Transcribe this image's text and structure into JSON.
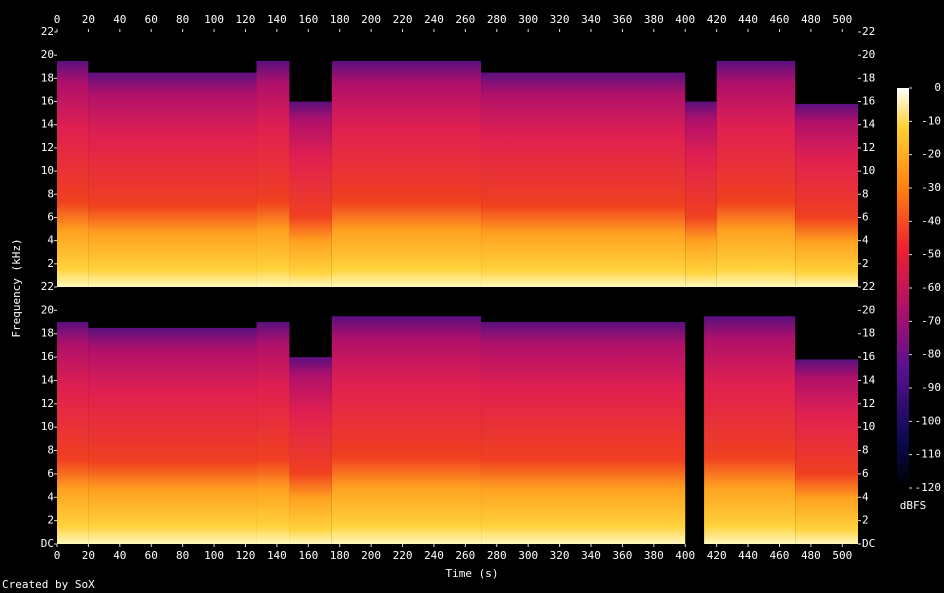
{
  "chart_data": {
    "type": "spectrogram",
    "x_label": "Time (s)",
    "y_label": "Frequency (kHz)",
    "colorbar_label": "dBFS",
    "footer": "Created by SoX",
    "xlim": [
      0,
      510
    ],
    "xticks": [
      0,
      20,
      40,
      60,
      80,
      100,
      120,
      140,
      160,
      180,
      200,
      220,
      240,
      260,
      280,
      300,
      320,
      340,
      360,
      380,
      400,
      420,
      440,
      460,
      480,
      500
    ],
    "ylim": [
      0,
      22
    ],
    "zlim": [
      -120,
      0
    ],
    "zticks": [
      0,
      -10,
      -20,
      -30,
      -40,
      -50,
      -60,
      -70,
      -80,
      -90,
      -100,
      -110,
      -120
    ],
    "channels": [
      {
        "yticks": [
          2,
          4,
          6,
          8,
          10,
          12,
          14,
          16,
          18,
          20,
          22
        ],
        "segments": [
          {
            "start": 0,
            "end": 20,
            "cutoff": 19.5
          },
          {
            "start": 20,
            "end": 127,
            "cutoff": 18.5
          },
          {
            "start": 127,
            "end": 148,
            "cutoff": 19.5
          },
          {
            "start": 148,
            "end": 175,
            "cutoff": 16
          },
          {
            "start": 175,
            "end": 270,
            "cutoff": 19.5
          },
          {
            "start": 270,
            "end": 400,
            "cutoff": 18.5
          },
          {
            "start": 400,
            "end": 420,
            "cutoff": 16
          },
          {
            "start": 420,
            "end": 470,
            "cutoff": 19.5
          },
          {
            "start": 470,
            "end": 510,
            "cutoff": 15.8
          }
        ]
      },
      {
        "yticks": [
          {
            "value": 0,
            "label": "DC"
          },
          2,
          4,
          6,
          8,
          10,
          12,
          14,
          16,
          18,
          20,
          22
        ],
        "segments": [
          {
            "start": 0,
            "end": 20,
            "cutoff": 19
          },
          {
            "start": 20,
            "end": 127,
            "cutoff": 18.5
          },
          {
            "start": 127,
            "end": 148,
            "cutoff": 19
          },
          {
            "start": 148,
            "end": 175,
            "cutoff": 16
          },
          {
            "start": 175,
            "end": 270,
            "cutoff": 19.5
          },
          {
            "start": 270,
            "end": 400,
            "cutoff": 19
          },
          {
            "start": 412,
            "end": 470,
            "cutoff": 19.5
          },
          {
            "start": 470,
            "end": 510,
            "cutoff": 15.8
          }
        ]
      }
    ]
  }
}
